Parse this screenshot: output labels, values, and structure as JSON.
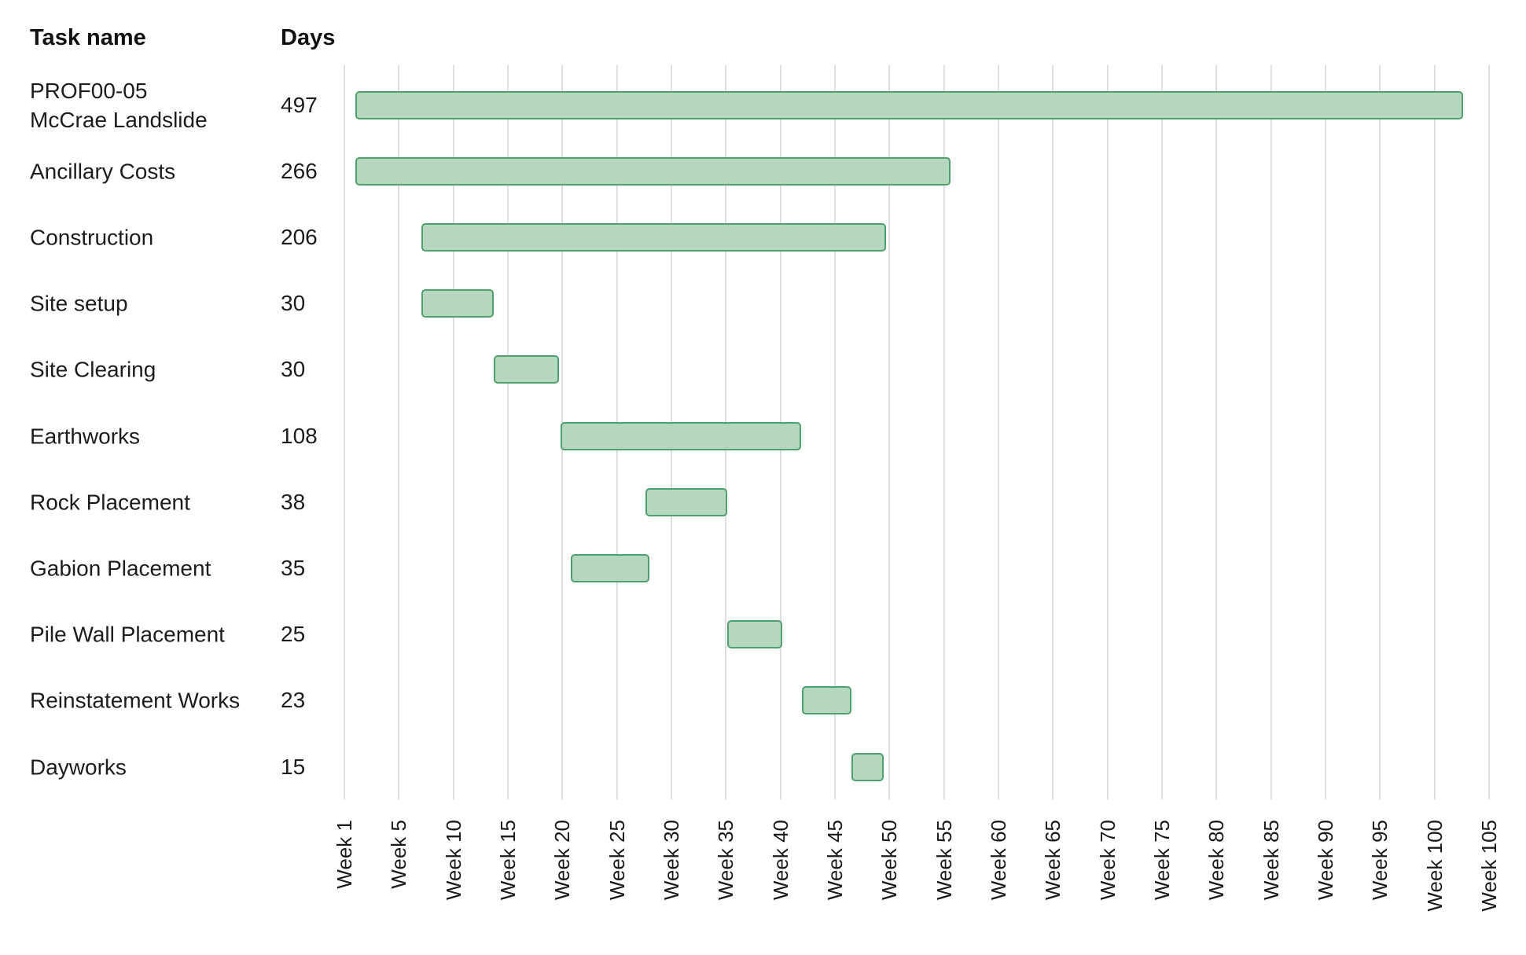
{
  "header": {
    "task_col": "Task name",
    "days_col": "Days"
  },
  "chart_data": {
    "type": "bar",
    "subtype": "gantt",
    "orientation": "horizontal",
    "title": "",
    "legend": false,
    "grid": true,
    "x_axis": {
      "unit": "weeks",
      "tick_labels": [
        "Week 1",
        "Week 5",
        "Week 10",
        "Week 15",
        "Week 20",
        "Week 25",
        "Week 30",
        "Week 35",
        "Week 40",
        "Week 45",
        "Week 50",
        "Week 55",
        "Week 60",
        "Week 65",
        "Week 70",
        "Week 75",
        "Week 80",
        "Week 85",
        "Week 90",
        "Week 95",
        "Week 100",
        "Week 105"
      ],
      "tick_axis_positions": [
        0,
        5,
        10,
        15,
        20,
        25,
        30,
        35,
        40,
        45,
        50,
        55,
        60,
        65,
        70,
        75,
        80,
        85,
        90,
        95,
        100,
        105
      ],
      "axis_range": [
        0,
        105.4
      ]
    },
    "tasks": [
      {
        "name": "PROF00-05\nMcCrae Landslide",
        "days": 497,
        "bar_start": 1.0,
        "bar_end": 102.6
      },
      {
        "name": "Ancillary Costs",
        "days": 266,
        "bar_start": 1.0,
        "bar_end": 55.6
      },
      {
        "name": "Construction",
        "days": 206,
        "bar_start": 7.1,
        "bar_end": 49.7
      },
      {
        "name": "Site setup",
        "days": 30,
        "bar_start": 7.1,
        "bar_end": 13.7
      },
      {
        "name": "Site Clearing",
        "days": 30,
        "bar_start": 13.7,
        "bar_end": 19.7
      },
      {
        "name": "Earthworks",
        "days": 108,
        "bar_start": 19.8,
        "bar_end": 41.9
      },
      {
        "name": "Rock Placement",
        "days": 38,
        "bar_start": 27.6,
        "bar_end": 35.1
      },
      {
        "name": "Gabion Placement",
        "days": 35,
        "bar_start": 20.8,
        "bar_end": 28.0
      },
      {
        "name": "Pile Wall Placement",
        "days": 25,
        "bar_start": 35.1,
        "bar_end": 40.2
      },
      {
        "name": "Reinstatement Works",
        "days": 23,
        "bar_start": 42.0,
        "bar_end": 46.5
      },
      {
        "name": "Dayworks",
        "days": 15,
        "bar_start": 46.5,
        "bar_end": 49.5
      }
    ],
    "colors": {
      "bar_fill": "#b5d7c0",
      "bar_border": "#4fa06c",
      "grid": "#dedede",
      "text": "#1c1c1c"
    }
  }
}
